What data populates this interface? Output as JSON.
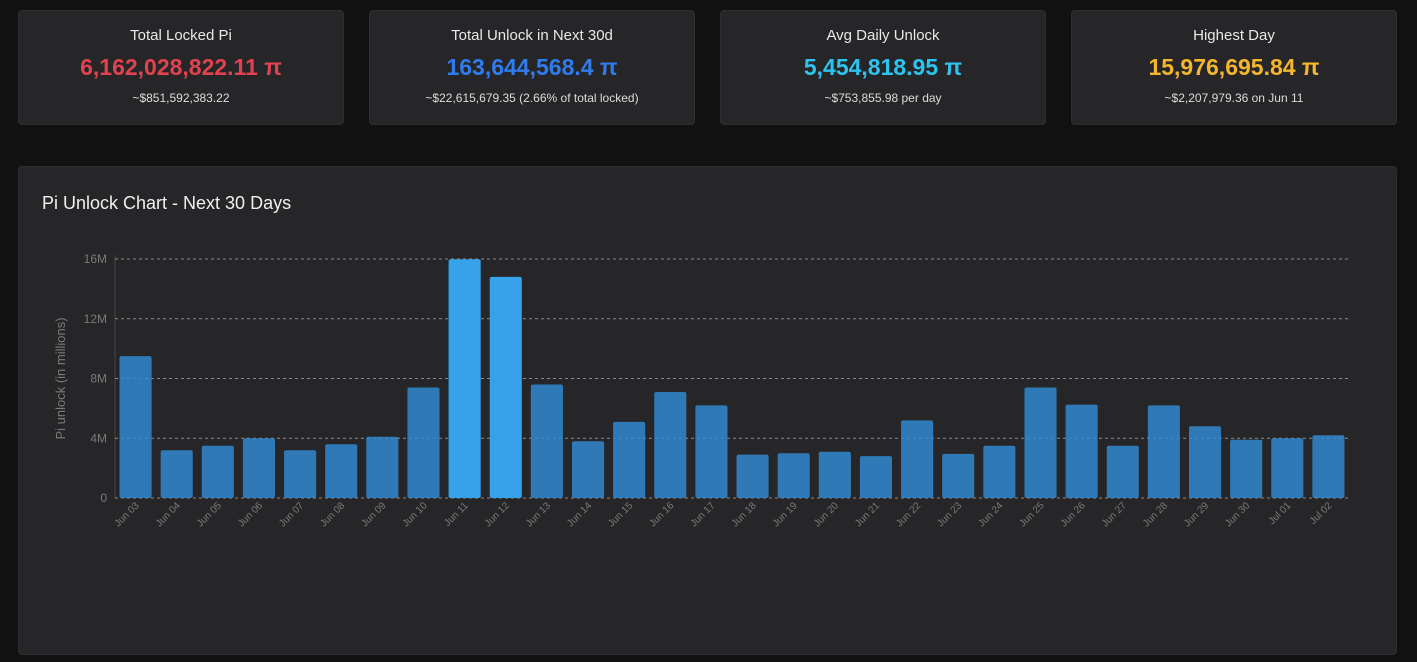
{
  "cards": [
    {
      "title": "Total Locked Pi",
      "value": "6,162,028,822.11 π",
      "sub": "~$851,592,383.22",
      "color": "#e0434f"
    },
    {
      "title": "Total Unlock in Next 30d",
      "value": "163,644,568.4 π",
      "sub": "~$22,615,679.35 (2.66% of total locked)",
      "color": "#2f7bf0"
    },
    {
      "title": "Avg Daily Unlock",
      "value": "5,454,818.95 π",
      "sub": "~$753,855.98 per day",
      "color": "#2cc4ee"
    },
    {
      "title": "Highest Day",
      "value": "15,976,695.84 π",
      "sub": "~$2,207,979.36 on Jun 11",
      "color": "#f4b62a"
    }
  ],
  "chart": {
    "panel_title": "Pi Unlock Chart - Next 30 Days"
  },
  "chart_data": {
    "type": "bar",
    "title": "Pi Unlock Chart - Next 30 Days",
    "xlabel": "",
    "ylabel": "Pi unlock (in millions)",
    "ylim": [
      0,
      16
    ],
    "yticks": [
      "0",
      "4M",
      "8M",
      "12M",
      "16M"
    ],
    "grid": true,
    "categories": [
      "Jun 03",
      "Jun 04",
      "Jun 05",
      "Jun 06",
      "Jun 07",
      "Jun 08",
      "Jun 09",
      "Jun 10",
      "Jun 11",
      "Jun 12",
      "Jun 13",
      "Jun 14",
      "Jun 15",
      "Jun 16",
      "Jun 17",
      "Jun 18",
      "Jun 19",
      "Jun 20",
      "Jun 21",
      "Jun 22",
      "Jun 23",
      "Jun 24",
      "Jun 25",
      "Jun 26",
      "Jun 27",
      "Jun 28",
      "Jun 29",
      "Jun 30",
      "Jul 01",
      "Jul 02"
    ],
    "values": [
      9.5,
      3.2,
      3.5,
      4.0,
      3.2,
      3.6,
      4.1,
      7.4,
      15.98,
      14.8,
      7.6,
      3.8,
      5.1,
      7.1,
      6.2,
      2.9,
      3.0,
      3.1,
      2.8,
      5.2,
      2.95,
      3.5,
      7.4,
      6.25,
      3.5,
      6.2,
      4.8,
      3.9,
      4.0,
      4.2
    ],
    "bar_color": "#3189cf",
    "highlight_color": "#36a2ea"
  }
}
